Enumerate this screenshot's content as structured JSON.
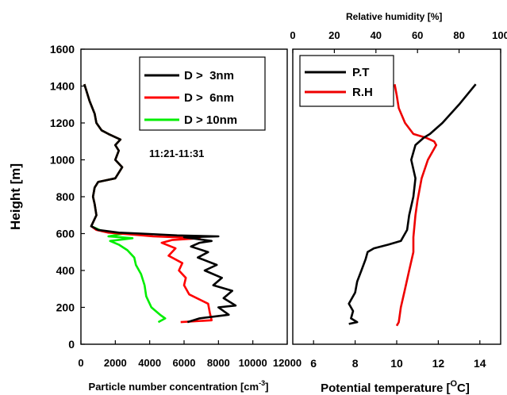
{
  "chart_data": [
    {
      "type": "line",
      "xlabel": "Particle number concentration [cm",
      "xlabel_sup": "-3",
      "xlabel_close": "]",
      "ylabel": "Height [m]",
      "xlim": [
        0,
        12000
      ],
      "ylim": [
        0,
        1600
      ],
      "xticks": [
        "0",
        "2000",
        "4000",
        "6000",
        "8000",
        "10000",
        "12000"
      ],
      "yticks": [
        "0",
        "200",
        "400",
        "600",
        "800",
        "1000",
        "1200",
        "1400",
        "1600"
      ],
      "annotation": "11:21-11:31",
      "legend_position": "top-right",
      "series": [
        {
          "name": "D >  3nm",
          "color": "#000000",
          "points": [
            [
              6200,
              120
            ],
            [
              6900,
              140
            ],
            [
              8600,
              160
            ],
            [
              8000,
              200
            ],
            [
              9000,
              210
            ],
            [
              8300,
              250
            ],
            [
              8800,
              290
            ],
            [
              7700,
              320
            ],
            [
              8200,
              360
            ],
            [
              7200,
              400
            ],
            [
              7900,
              430
            ],
            [
              6800,
              470
            ],
            [
              7400,
              500
            ],
            [
              6400,
              530
            ],
            [
              6900,
              550
            ],
            [
              7600,
              560
            ],
            [
              6000,
              580
            ],
            [
              8000,
              585
            ],
            [
              5600,
              590
            ],
            [
              3500,
              600
            ],
            [
              2200,
              605
            ],
            [
              1000,
              620
            ],
            [
              600,
              640
            ],
            [
              900,
              700
            ],
            [
              800,
              760
            ],
            [
              700,
              800
            ],
            [
              800,
              850
            ],
            [
              1000,
              880
            ],
            [
              2000,
              900
            ],
            [
              2400,
              960
            ],
            [
              2000,
              1000
            ],
            [
              2200,
              1050
            ],
            [
              2000,
              1080
            ],
            [
              2300,
              1110
            ],
            [
              1600,
              1140
            ],
            [
              1200,
              1160
            ],
            [
              900,
              1200
            ],
            [
              800,
              1250
            ],
            [
              500,
              1320
            ],
            [
              300,
              1380
            ],
            [
              200,
              1410
            ]
          ]
        },
        {
          "name": "D >  6nm",
          "color": "#ff0000",
          "points": [
            [
              5800,
              120
            ],
            [
              7600,
              130
            ],
            [
              7500,
              170
            ],
            [
              7400,
              220
            ],
            [
              6300,
              270
            ],
            [
              6000,
              320
            ],
            [
              6100,
              360
            ],
            [
              5700,
              400
            ],
            [
              5900,
              440
            ],
            [
              5100,
              480
            ],
            [
              5500,
              520
            ],
            [
              4700,
              550
            ],
            [
              5300,
              565
            ],
            [
              6900,
              575
            ],
            [
              4200,
              585
            ],
            [
              3000,
              595
            ],
            [
              1600,
              605
            ],
            [
              900,
              620
            ],
            [
              600,
              640
            ],
            [
              900,
              700
            ],
            [
              800,
              760
            ],
            [
              700,
              800
            ],
            [
              800,
              850
            ],
            [
              1000,
              880
            ],
            [
              2000,
              900
            ],
            [
              2400,
              960
            ],
            [
              2000,
              1000
            ],
            [
              2200,
              1050
            ],
            [
              2000,
              1080
            ],
            [
              2300,
              1110
            ],
            [
              1600,
              1140
            ],
            [
              1200,
              1160
            ],
            [
              900,
              1200
            ],
            [
              800,
              1250
            ],
            [
              500,
              1320
            ],
            [
              300,
              1380
            ],
            [
              200,
              1410
            ]
          ]
        },
        {
          "name": "D > 10nm",
          "color": "#00ee00",
          "points": [
            [
              4500,
              120
            ],
            [
              4900,
              140
            ],
            [
              4600,
              160
            ],
            [
              4100,
              200
            ],
            [
              3800,
              260
            ],
            [
              3700,
              320
            ],
            [
              3500,
              380
            ],
            [
              3200,
              430
            ],
            [
              3100,
              470
            ],
            [
              2700,
              510
            ],
            [
              2200,
              540
            ],
            [
              1700,
              560
            ],
            [
              3000,
              575
            ],
            [
              1600,
              585
            ],
            [
              2500,
              600
            ],
            [
              1200,
              615
            ],
            [
              600,
              640
            ],
            [
              900,
              700
            ],
            [
              800,
              760
            ],
            [
              700,
              800
            ],
            [
              800,
              850
            ],
            [
              1000,
              880
            ],
            [
              2000,
              900
            ],
            [
              2400,
              960
            ],
            [
              2000,
              1000
            ],
            [
              2200,
              1050
            ],
            [
              2000,
              1080
            ],
            [
              2300,
              1110
            ],
            [
              1600,
              1140
            ],
            [
              1200,
              1160
            ],
            [
              900,
              1200
            ],
            [
              800,
              1250
            ],
            [
              500,
              1320
            ],
            [
              300,
              1380
            ],
            [
              200,
              1410
            ]
          ]
        }
      ]
    },
    {
      "type": "line",
      "xlabel": "Potential temperature [",
      "xlabel_sup": "O",
      "xlabel_close": "C]",
      "x2label": "Relative humidity [%]",
      "xlim": [
        5,
        15
      ],
      "x2lim": [
        0,
        100
      ],
      "ylim": [
        0,
        1600
      ],
      "xticks": [
        "6",
        "8",
        "10",
        "12",
        "14"
      ],
      "x2ticks": [
        "0",
        "20",
        "40",
        "60",
        "80",
        "100"
      ],
      "legend_position": "top-left",
      "series": [
        {
          "name": "P.T",
          "color": "#000000",
          "axis": "bottom",
          "points": [
            [
              7.7,
              110
            ],
            [
              8.1,
              120
            ],
            [
              7.8,
              140
            ],
            [
              7.9,
              180
            ],
            [
              7.7,
              220
            ],
            [
              8.0,
              280
            ],
            [
              8.1,
              340
            ],
            [
              8.3,
              400
            ],
            [
              8.5,
              460
            ],
            [
              8.6,
              500
            ],
            [
              8.9,
              520
            ],
            [
              9.6,
              540
            ],
            [
              10.2,
              560
            ],
            [
              10.5,
              620
            ],
            [
              10.6,
              700
            ],
            [
              10.8,
              800
            ],
            [
              10.9,
              900
            ],
            [
              10.7,
              1000
            ],
            [
              10.9,
              1080
            ],
            [
              11.3,
              1120
            ],
            [
              11.6,
              1140
            ],
            [
              12.2,
              1200
            ],
            [
              13.0,
              1300
            ],
            [
              13.8,
              1410
            ]
          ]
        },
        {
          "name": "R.H",
          "color": "#ee0000",
          "axis": "top",
          "points": [
            [
              50,
              100
            ],
            [
              51,
              120
            ],
            [
              52,
              200
            ],
            [
              54,
              300
            ],
            [
              56,
              400
            ],
            [
              58,
              500
            ],
            [
              58,
              580
            ],
            [
              59,
              700
            ],
            [
              60,
              780
            ],
            [
              62,
              900
            ],
            [
              65,
              1000
            ],
            [
              67,
              1040
            ],
            [
              69,
              1080
            ],
            [
              68,
              1100
            ],
            [
              64,
              1120
            ],
            [
              58,
              1140
            ],
            [
              54,
              1200
            ],
            [
              51,
              1280
            ],
            [
              50,
              1350
            ],
            [
              49,
              1410
            ]
          ]
        }
      ]
    }
  ]
}
